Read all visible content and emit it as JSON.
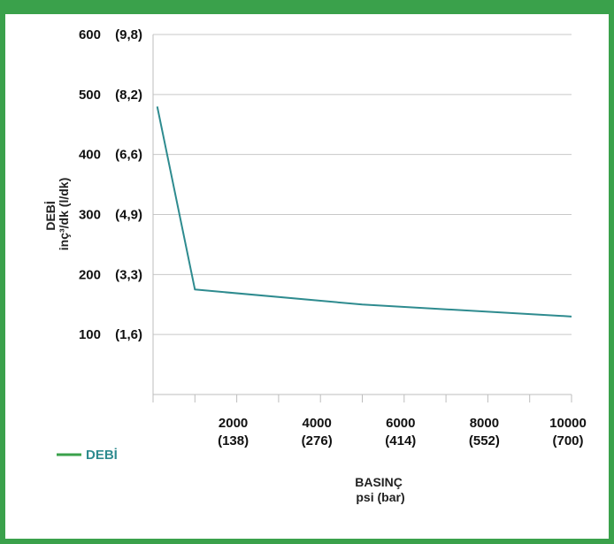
{
  "chart_data": {
    "type": "line",
    "title": "",
    "x": [
      100,
      1000,
      5000,
      10000
    ],
    "series": [
      {
        "name": "DEBİ",
        "values": [
          480,
          175,
          150,
          130
        ]
      }
    ],
    "xlim": [
      0,
      10000
    ],
    "ylim": [
      0,
      600
    ],
    "grid": "horizontal",
    "legend_position": "bottom-left",
    "xlabel_line1": "BASINÇ",
    "xlabel_line2": "psi (bar)",
    "ylabel_line1": "DEBİ",
    "ylabel_line2": "inç³/dk (l/dk)",
    "x_ticks": [
      {
        "value": 2000,
        "label": "2000",
        "sublabel": "(138)"
      },
      {
        "value": 4000,
        "label": "4000",
        "sublabel": "(276)"
      },
      {
        "value": 6000,
        "label": "6000",
        "sublabel": "(414)"
      },
      {
        "value": 8000,
        "label": "8000",
        "sublabel": "(552)"
      },
      {
        "value": 10000,
        "label": "10000",
        "sublabel": "(700)"
      }
    ],
    "y_ticks": [
      {
        "value": 100,
        "label": "100",
        "sublabel": "(1,6)"
      },
      {
        "value": 200,
        "label": "200",
        "sublabel": "(3,3)"
      },
      {
        "value": 300,
        "label": "300",
        "sublabel": "(4,9)"
      },
      {
        "value": 400,
        "label": "400",
        "sublabel": "(6,6)"
      },
      {
        "value": 500,
        "label": "500",
        "sublabel": "(8,2)"
      },
      {
        "value": 600,
        "label": "600",
        "sublabel": "(9,8)"
      }
    ],
    "colors": {
      "line": "#2e8b8f",
      "legend_line": "#3aa14b",
      "frame": "#3aa14b",
      "grid": "#c8c8c8"
    }
  }
}
